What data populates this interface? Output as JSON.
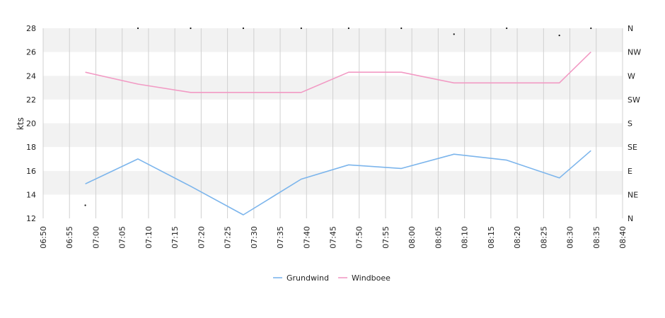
{
  "chart_data": {
    "type": "line",
    "ylabel": "kts",
    "ylim": [
      12,
      28
    ],
    "y_ticks": [
      "12",
      "14",
      "16",
      "18",
      "20",
      "22",
      "24",
      "26",
      "28"
    ],
    "x_range": [
      "06:50",
      "08:40"
    ],
    "x_ticks": [
      "06:50",
      "06:55",
      "07:00",
      "07:05",
      "07:10",
      "07:15",
      "07:20",
      "07:25",
      "07:30",
      "07:35",
      "07:40",
      "07:45",
      "07:50",
      "07:55",
      "08:00",
      "08:05",
      "08:10",
      "08:15",
      "08:20",
      "08:25",
      "08:30",
      "08:35",
      "08:40"
    ],
    "right_axis_labels": [
      "N",
      "NE",
      "E",
      "SE",
      "S",
      "SW",
      "W",
      "NW",
      "N"
    ],
    "grid": true,
    "legend_position": "bottom",
    "series": [
      {
        "name": "Grundwind",
        "color": "#7cb5ec",
        "points": [
          {
            "x": "06:58",
            "y": 14.9
          },
          {
            "x": "07:08",
            "y": 17.0
          },
          {
            "x": "07:18",
            "y": 14.7
          },
          {
            "x": "07:28",
            "y": 12.3
          },
          {
            "x": "07:39",
            "y": 15.3
          },
          {
            "x": "07:48",
            "y": 16.5
          },
          {
            "x": "07:58",
            "y": 16.2
          },
          {
            "x": "08:08",
            "y": 17.4
          },
          {
            "x": "08:18",
            "y": 16.9
          },
          {
            "x": "08:28",
            "y": 15.4
          },
          {
            "x": "08:34",
            "y": 17.7
          }
        ]
      },
      {
        "name": "Windboee",
        "color": "#f29ac4",
        "points": [
          {
            "x": "06:58",
            "y": 24.3
          },
          {
            "x": "07:08",
            "y": 23.3
          },
          {
            "x": "07:18",
            "y": 22.6
          },
          {
            "x": "07:28",
            "y": 22.6
          },
          {
            "x": "07:39",
            "y": 22.6
          },
          {
            "x": "07:48",
            "y": 24.3
          },
          {
            "x": "07:58",
            "y": 24.3
          },
          {
            "x": "08:08",
            "y": 23.4
          },
          {
            "x": "08:18",
            "y": 23.4
          },
          {
            "x": "08:28",
            "y": 23.4
          },
          {
            "x": "08:34",
            "y": 26.0
          }
        ]
      }
    ],
    "direction_markers": [
      {
        "x": "06:58",
        "y": 13.1
      },
      {
        "x": "07:08",
        "y": 28.0
      },
      {
        "x": "07:18",
        "y": 28.0
      },
      {
        "x": "07:28",
        "y": 28.0
      },
      {
        "x": "07:39",
        "y": 28.0
      },
      {
        "x": "07:48",
        "y": 28.0
      },
      {
        "x": "07:58",
        "y": 28.0
      },
      {
        "x": "08:08",
        "y": 27.5
      },
      {
        "x": "08:18",
        "y": 28.0
      },
      {
        "x": "08:28",
        "y": 27.4
      },
      {
        "x": "08:34",
        "y": 28.0
      }
    ]
  }
}
